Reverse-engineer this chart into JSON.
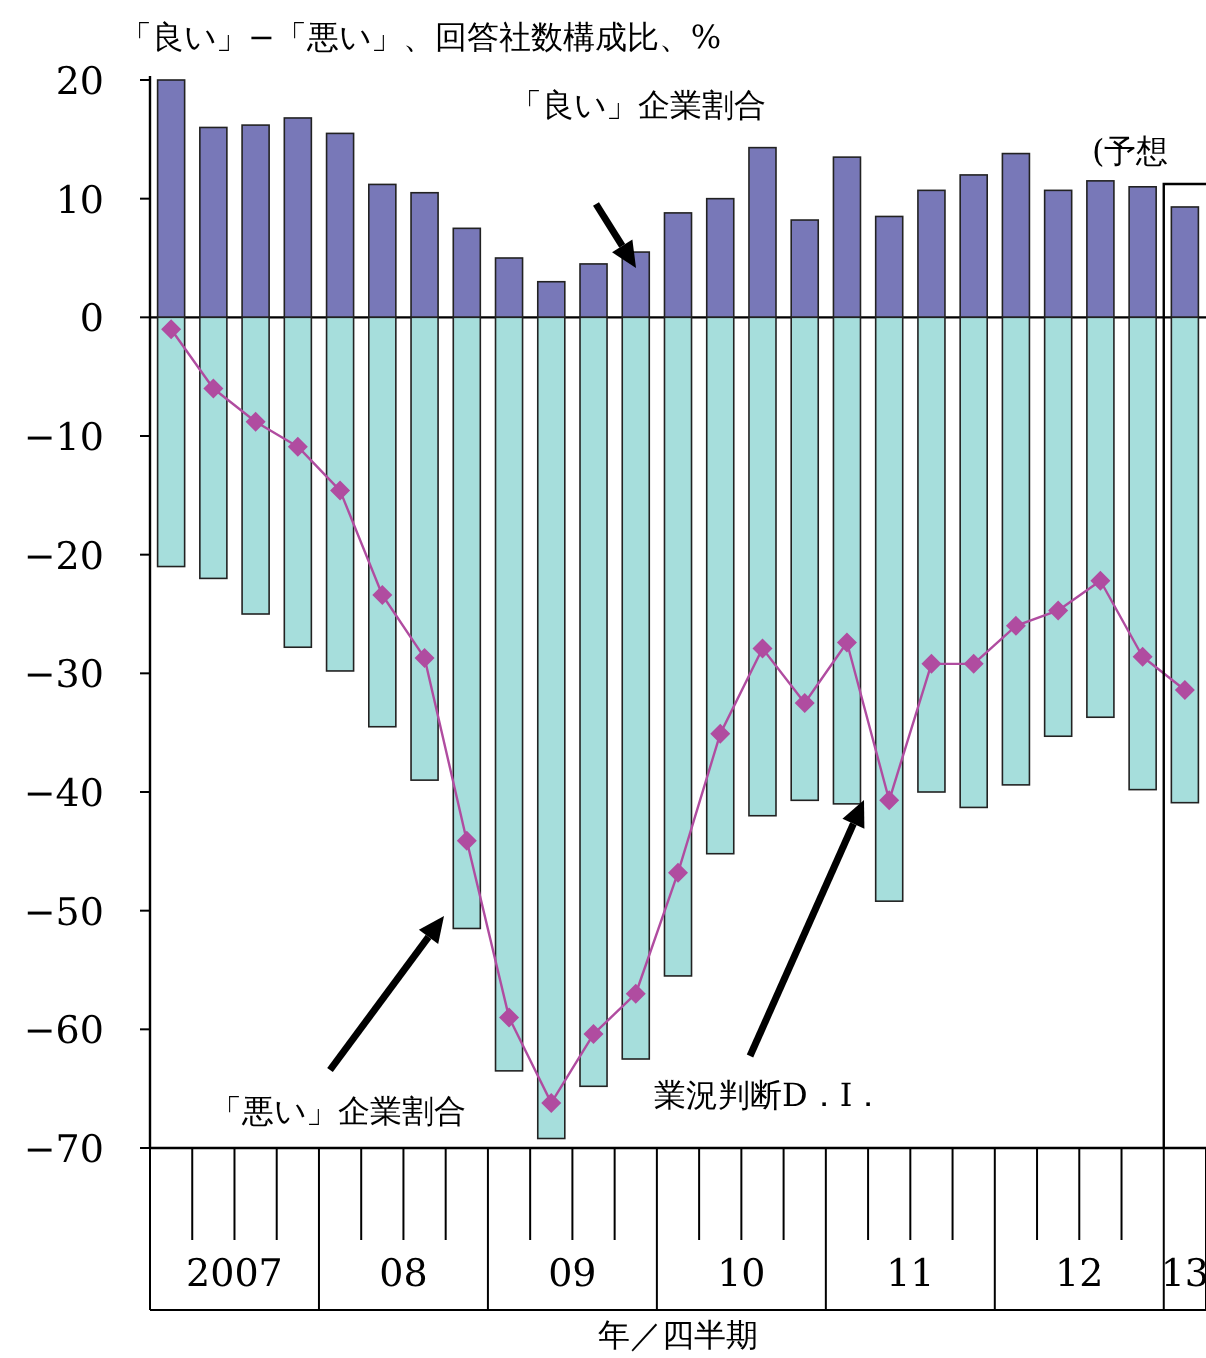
{
  "chart_data": {
    "type": "bar",
    "stacked": true,
    "ylabel": "「良い」−「悪い」、回答社数構成比、%",
    "xlabel": "年／四半期",
    "categories": [
      null,
      null,
      null,
      null,
      null,
      null,
      null,
      null,
      null,
      null,
      null,
      null,
      null,
      null,
      null,
      null,
      null,
      null,
      null,
      null,
      null,
      null,
      null,
      null,
      null
    ],
    "series": [
      {
        "color": "#7878b8",
        "values": [
          20,
          16,
          16.2,
          16.8,
          15.5,
          11.2,
          10.5,
          7.5,
          5,
          3,
          4.5,
          5.5,
          8.8,
          10,
          14.3,
          8.2,
          13.5,
          8.5,
          10.7,
          12,
          13.8,
          10.7,
          11.5,
          11,
          9.3
        ]
      },
      {
        "color": "#a6dedc",
        "values": [
          -21,
          -22,
          -25,
          -27.8,
          -29.8,
          -34.5,
          -39,
          -51.5,
          -63.5,
          -69.2,
          -64.8,
          -62.5,
          -55.5,
          -45.2,
          -42,
          -40.7,
          -41,
          -49.2,
          -40,
          -41.3,
          -39.4,
          -35.3,
          -33.7,
          -39.8,
          -40.9
        ]
      },
      {
        "type": "line",
        "color": "#b04ca0",
        "marker": "diamond",
        "line_style": "solid",
        "values": [
          -1,
          -6,
          -8.8,
          -10.9,
          -14.6,
          -23.4,
          -28.7,
          -44.1,
          -59,
          -66.2,
          -60.4,
          -57,
          -46.8,
          -35.1,
          -27.9,
          -32.5,
          -27.4,
          -40.7,
          -29.2,
          -29.2,
          -26,
          -24.7,
          -22.2,
          -28.6,
          -31.4
        ]
      }
    ],
    "ylim": [
      -70,
      20
    ],
    "yticks": [
      -70,
      -60,
      -50,
      -40,
      -30,
      -20,
      -10,
      0,
      10,
      20
    ],
    "ref_lines": [
      {
        "axis": "y",
        "value": 0
      }
    ],
    "annotations": [
      "「良い」企業割合",
      "「悪い」企業割合",
      "業況判断D．I．",
      "(予想",
      "2007",
      "08",
      "09",
      "10",
      "11",
      "12",
      "13"
    ]
  }
}
